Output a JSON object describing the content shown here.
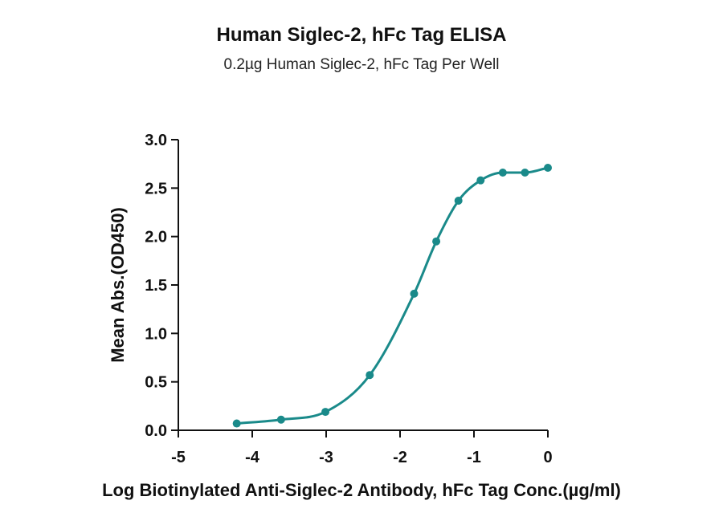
{
  "chart_data": {
    "type": "scatter",
    "title": "Human Siglec-2, hFc Tag ELISA",
    "subtitle": "0.2µg Human Siglec-2, hFc Tag Per Well",
    "xlabel": "Log Biotinylated Anti-Siglec-2 Antibody, hFc Tag Conc.(µg/ml)",
    "ylabel": "Mean Abs.(OD450)",
    "xlim": [
      -5,
      0
    ],
    "ylim": [
      0,
      3
    ],
    "x_ticks": [
      "-5",
      "-4",
      "-3",
      "-2",
      "-1",
      "0"
    ],
    "y_ticks": [
      "0.0",
      "0.5",
      "1.0",
      "1.5",
      "2.0",
      "2.5",
      "3.0"
    ],
    "grid": false,
    "color": "#1a8a8a",
    "series": [
      {
        "points": [
          {
            "x": -4.21,
            "y": 0.07
          },
          {
            "x": -3.61,
            "y": 0.11
          },
          {
            "x": -3.01,
            "y": 0.19
          },
          {
            "x": -2.41,
            "y": 0.57
          },
          {
            "x": -1.81,
            "y": 1.41
          },
          {
            "x": -1.51,
            "y": 1.95
          },
          {
            "x": -1.21,
            "y": 2.37
          },
          {
            "x": -0.91,
            "y": 2.58
          },
          {
            "x": -0.61,
            "y": 2.66
          },
          {
            "x": -0.31,
            "y": 2.66
          },
          {
            "x": 0.0,
            "y": 2.71
          }
        ],
        "fit_curve": true
      }
    ]
  }
}
